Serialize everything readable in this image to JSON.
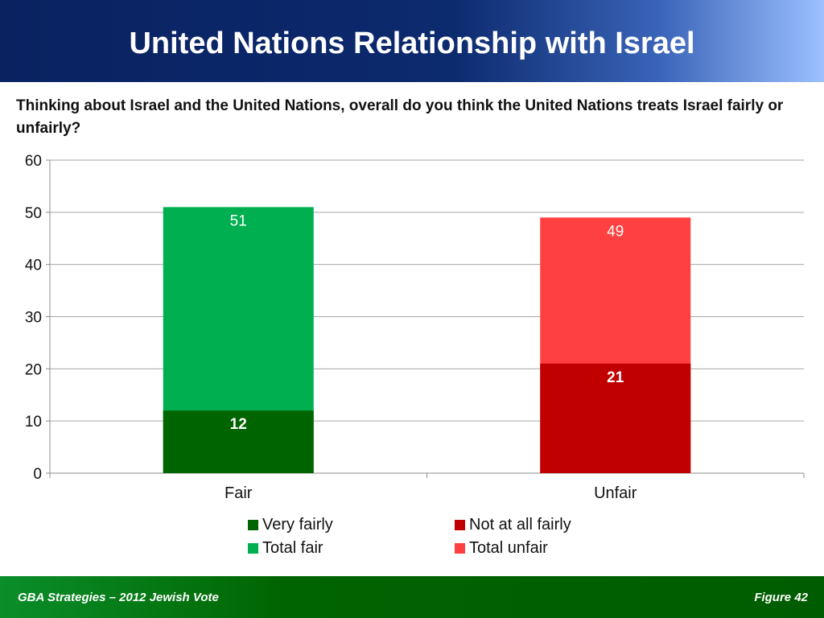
{
  "header": {
    "title": "United Nations Relationship with Israel"
  },
  "question": "Thinking about Israel and the United Nations, overall do you think the United Nations treats Israel fairly or unfairly?",
  "footer": {
    "left": "GBA Strategies – 2012 Jewish Vote",
    "right": "Figure  42"
  },
  "chart_data": {
    "type": "bar",
    "stacked": "overlay",
    "categories": [
      "Fair",
      "Unfair"
    ],
    "ylim": [
      0,
      60
    ],
    "yticks": [
      0,
      10,
      20,
      30,
      40,
      50,
      60
    ],
    "grid": true,
    "legend_position": "bottom",
    "series": [
      {
        "name": "Very fairly",
        "values": [
          12,
          null
        ],
        "color": "#006400",
        "label_color": "#ffffff",
        "label_bold": true
      },
      {
        "name": "Not at all fairly",
        "values": [
          null,
          21
        ],
        "color": "#c00000",
        "label_color": "#ffffff",
        "label_bold": true
      },
      {
        "name": "Total fair",
        "values": [
          51,
          null
        ],
        "color": "#00b050",
        "label_color": "#ffffff",
        "label_bold": false
      },
      {
        "name": "Total unfair",
        "values": [
          null,
          49
        ],
        "color": "#ff4040",
        "label_color": "#ffffff",
        "label_bold": false
      }
    ]
  }
}
